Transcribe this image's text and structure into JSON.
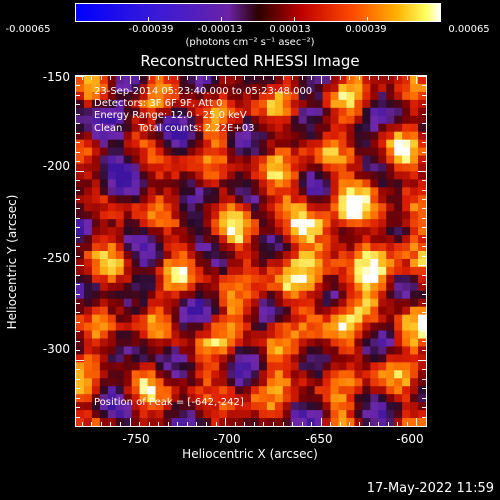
{
  "colorbar": {
    "ticks": [
      "-0.00065",
      "-0.00039",
      "-0.00013",
      "0.00013",
      "0.00039",
      "0.00065"
    ],
    "unit_label": "(photons cm⁻² s⁻¹ asec⁻²)"
  },
  "chart_data": {
    "type": "heatmap",
    "title": "Reconstructed RHESSI Image",
    "xlabel": "Heliocentric X (arcsec)",
    "ylabel": "Heliocentric Y (arcsec)",
    "xlim": [
      -778,
      -595
    ],
    "ylim": [
      -335,
      -150
    ],
    "x_ticks": [
      "-750",
      "-700",
      "-650",
      "-600"
    ],
    "x_tick_values": [
      -750,
      -700,
      -650,
      -600
    ],
    "y_ticks": [
      "-150",
      "-200",
      "-250",
      "-300"
    ],
    "y_tick_values": [
      -150,
      -200,
      -250,
      -300
    ],
    "value_range": [
      -0.00065,
      0.00065
    ],
    "colormap": "blue-purple-red-orange-yellow-white",
    "annotations": [
      "23-Sep-2014 05:23:40.000 to 05:23:48.000",
      "Detectors: 3F 6F 9F, Att 0",
      "Energy Range: 12.0 - 25.0 keV",
      "Clean     Total counts: 2.22E+03"
    ],
    "peak_label": "Position of Peak = [-642,-242]",
    "peak": [
      -642,
      -242
    ]
  },
  "timestamp": "17-May-2022 11:59"
}
